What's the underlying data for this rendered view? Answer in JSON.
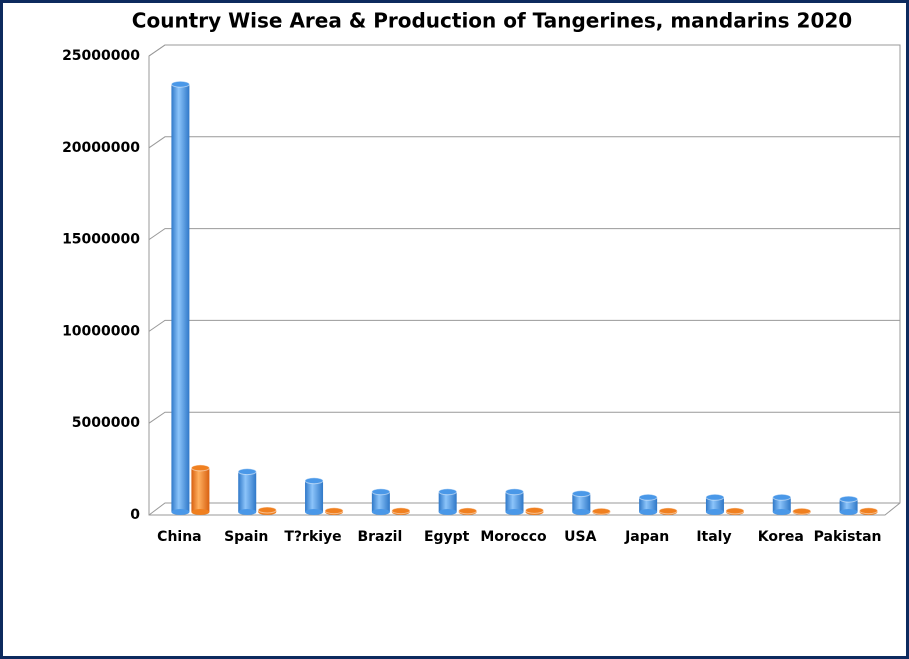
{
  "chart_data": {
    "type": "bar3d",
    "title": "Country Wise Area & Production of Tangerines, mandarins 2020",
    "categories": [
      "China",
      "Spain",
      "T?rkiye",
      "Brazil",
      "Egypt",
      "Morocco",
      "USA",
      "Japan",
      "Italy",
      "Korea",
      "Pakistan"
    ],
    "series": [
      {
        "color": "#4a98e8",
        "values": [
          23300000,
          2200000,
          1700000,
          1100000,
          1100000,
          1100000,
          1000000,
          800000,
          800000,
          800000,
          700000
        ]
      },
      {
        "color": "#f08020",
        "values": [
          2400000,
          110000,
          70000,
          70000,
          60000,
          90000,
          40000,
          60000,
          60000,
          40000,
          70000
        ]
      }
    ],
    "ylim": [
      0,
      25000000
    ],
    "yticks": [
      0,
      5000000,
      10000000,
      15000000,
      20000000,
      25000000
    ],
    "grid": true
  }
}
